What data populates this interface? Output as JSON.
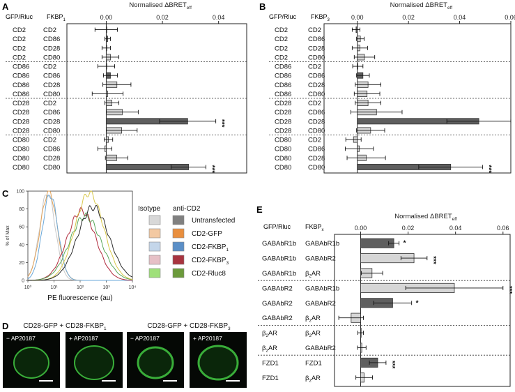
{
  "panels": {
    "A": {
      "letter": "A",
      "header_left": "GFP/Rluc",
      "header_right": "FKBP",
      "header_sub": "1"
    },
    "B": {
      "letter": "B",
      "header_left": "GFP/Rluc",
      "header_right": "FKBP",
      "header_sub": "3"
    },
    "C": {
      "letter": "C"
    },
    "D": {
      "letter": "D"
    },
    "E": {
      "letter": "E",
      "header_left": "GFP/Rluc",
      "header_right": "FKBP",
      "header_sub": "x"
    }
  },
  "colors": {
    "light_bar": "#d6d6d6",
    "dark_bar": "#5f5f5f",
    "gfp_green": "#3fbf3f",
    "flow": [
      "#c8c8c8",
      "#e3a35a",
      "#6aa7d8",
      "#b0283a",
      "#5aa75a",
      "#d9c84a",
      "#2a2a2a"
    ]
  },
  "chart_data": [
    {
      "id": "A",
      "type": "bar",
      "orientation": "horizontal",
      "xlabel": "Normalised ΔBRET",
      "xlabel_sub": "eff",
      "xticks": [
        "0.00",
        "0.02",
        "0.04"
      ],
      "xlim": [
        -0.014,
        0.05
      ],
      "categories": [
        {
          "gfp": "CD2",
          "fkbp": "CD2"
        },
        {
          "gfp": "CD2",
          "fkbp": "CD86"
        },
        {
          "gfp": "CD2",
          "fkbp": "CD28"
        },
        {
          "gfp": "CD2",
          "fkbp": "CD80"
        },
        {
          "gfp": "CD86",
          "fkbp": "CD2"
        },
        {
          "gfp": "CD86",
          "fkbp": "CD86"
        },
        {
          "gfp": "CD86",
          "fkbp": "CD28"
        },
        {
          "gfp": "CD86",
          "fkbp": "CD80"
        },
        {
          "gfp": "CD28",
          "fkbp": "CD2"
        },
        {
          "gfp": "CD28",
          "fkbp": "CD86"
        },
        {
          "gfp": "CD28",
          "fkbp": "CD28"
        },
        {
          "gfp": "CD28",
          "fkbp": "CD80"
        },
        {
          "gfp": "CD80",
          "fkbp": "CD2"
        },
        {
          "gfp": "CD80",
          "fkbp": "CD86"
        },
        {
          "gfp": "CD80",
          "fkbp": "CD28"
        },
        {
          "gfp": "CD80",
          "fkbp": "CD80"
        }
      ],
      "values": [
        0.0,
        0.0005,
        0.0,
        0.0015,
        0.0,
        0.0015,
        0.0038,
        0.0005,
        0.002,
        0.0057,
        0.029,
        0.0055,
        0.0008,
        -0.0005,
        0.0037,
        0.0293
      ],
      "errors": [
        0.004,
        0.001,
        0.0015,
        0.003,
        0.003,
        0.0025,
        0.005,
        0.0055,
        0.0025,
        0.0057,
        0.01,
        0.0055,
        0.0015,
        0.0025,
        0.004,
        0.0062
      ],
      "dark": [
        false,
        true,
        false,
        false,
        false,
        true,
        false,
        false,
        false,
        false,
        true,
        false,
        false,
        false,
        false,
        true
      ],
      "significance": [
        "",
        "",
        "",
        "",
        "",
        "",
        "",
        "",
        "",
        "",
        "***",
        "",
        "",
        "",
        "",
        "***"
      ],
      "group_breaks": [
        4,
        8,
        12
      ]
    },
    {
      "id": "B",
      "type": "bar",
      "orientation": "horizontal",
      "xlabel": "Normalised ΔBRET",
      "xlabel_sub": "eff",
      "xticks": [
        "0.00",
        "0.02",
        "0.04",
        "0.06"
      ],
      "xlim": [
        -0.013,
        0.06
      ],
      "categories": [
        {
          "gfp": "CD2",
          "fkbp": "CD2"
        },
        {
          "gfp": "CD2",
          "fkbp": "CD86"
        },
        {
          "gfp": "CD2",
          "fkbp": "CD28"
        },
        {
          "gfp": "CD2",
          "fkbp": "CD80"
        },
        {
          "gfp": "CD86",
          "fkbp": "CD2"
        },
        {
          "gfp": "CD86",
          "fkbp": "CD86"
        },
        {
          "gfp": "CD86",
          "fkbp": "CD28"
        },
        {
          "gfp": "CD86",
          "fkbp": "CD80"
        },
        {
          "gfp": "CD28",
          "fkbp": "CD2"
        },
        {
          "gfp": "CD28",
          "fkbp": "CD86"
        },
        {
          "gfp": "CD28",
          "fkbp": "CD28"
        },
        {
          "gfp": "CD28",
          "fkbp": "CD80"
        },
        {
          "gfp": "CD80",
          "fkbp": "CD2"
        },
        {
          "gfp": "CD80",
          "fkbp": "CD86"
        },
        {
          "gfp": "CD80",
          "fkbp": "CD28"
        },
        {
          "gfp": "CD80",
          "fkbp": "CD80"
        }
      ],
      "values": [
        -0.0005,
        0.0012,
        0.001,
        0.0028,
        0.0002,
        0.0022,
        0.0042,
        0.0038,
        0.0042,
        0.0075,
        0.0475,
        0.0052,
        -0.0015,
        0.0008,
        0.0035,
        0.0365
      ],
      "errors": [
        0.0015,
        0.0015,
        0.003,
        0.004,
        0.002,
        0.0025,
        0.005,
        0.005,
        0.005,
        0.01,
        0.0125,
        0.0055,
        0.003,
        0.0055,
        0.0075,
        0.0125
      ],
      "dark": [
        true,
        false,
        false,
        false,
        false,
        true,
        false,
        false,
        false,
        false,
        true,
        false,
        false,
        false,
        false,
        true
      ],
      "significance": [
        "",
        "",
        "",
        "",
        "",
        "",
        "",
        "",
        "",
        "",
        "***",
        "",
        "",
        "",
        "",
        "***"
      ],
      "group_breaks": [
        4,
        8,
        12
      ]
    },
    {
      "id": "C",
      "type": "line",
      "ylabel": "% of Max",
      "xlabel": "PE fluorescence (au)",
      "yticks": [
        "0",
        "20",
        "40",
        "60",
        "80",
        "100"
      ],
      "ylim": [
        0,
        100
      ],
      "xscale": "log",
      "xticks": [
        "10⁰",
        "10¹",
        "10²",
        "10³",
        "10⁴"
      ],
      "xlim": [
        1,
        10000
      ],
      "series": [
        {
          "key": "c1",
          "peak_log": 0.75,
          "width": 0.3,
          "height": 98
        },
        {
          "key": "c2",
          "peak_log": 0.8,
          "width": 0.32,
          "height": 100
        },
        {
          "key": "c3",
          "peak_log": 0.85,
          "width": 0.3,
          "height": 96
        },
        {
          "key": "c4",
          "peak_log": 2.05,
          "width": 0.55,
          "height": 78
        },
        {
          "key": "c5",
          "peak_log": 2.2,
          "width": 0.6,
          "height": 72
        },
        {
          "key": "c6",
          "peak_log": 2.35,
          "width": 0.55,
          "height": 98
        },
        {
          "key": "c7",
          "peak_log": 2.5,
          "width": 0.6,
          "height": 82
        }
      ],
      "legend_headers": {
        "isotype": "Isotype",
        "anti": "anti-CD2"
      },
      "legend": [
        {
          "label": "Untransfected",
          "left": "#d8d8d8",
          "right": "#808080"
        },
        {
          "label": "CD2-GFP",
          "left": "#f3c9a2",
          "right": "#e98f3e"
        },
        {
          "label": "CD2-FKBP",
          "sub": "1",
          "left": "#c4d6ea",
          "right": "#5b8fc7"
        },
        {
          "label": "CD2-FKBP",
          "sub": "3",
          "left": "#e6c0c6",
          "right": "#a8343f"
        },
        {
          "label": "CD2-Rluc8",
          "left": "#9fe07a",
          "right": "#6b9a3b"
        }
      ]
    },
    {
      "id": "E",
      "type": "bar",
      "orientation": "horizontal",
      "xlabel": "Normalised ΔBRET",
      "xlabel_sub": "eff",
      "xticks": [
        "0.00",
        "0.02",
        "0.04",
        "0.06"
      ],
      "xlim": [
        -0.011,
        0.063
      ],
      "categories": [
        {
          "gfp": "GABAbR1b",
          "fkbp": "GABAbR1b"
        },
        {
          "gfp": "GABAbR1b",
          "fkbp": "GABAbR2"
        },
        {
          "gfp": "GABAbR1b",
          "fkbp": "β2AR"
        },
        {
          "gfp": "GABAbR2",
          "fkbp": "GABAbR1b"
        },
        {
          "gfp": "GABAbR2",
          "fkbp": "GABAbR2"
        },
        {
          "gfp": "GABAbR2",
          "fkbp": "β2AR"
        },
        {
          "gfp": "β2AR",
          "fkbp": "β2AR"
        },
        {
          "gfp": "β2AR",
          "fkbp": "GABAbR2"
        },
        {
          "gfp": "FZD1",
          "fkbp": "FZD1"
        },
        {
          "gfp": "FZD1",
          "fkbp": "β2AR"
        }
      ],
      "values": [
        0.014,
        0.0225,
        0.0048,
        0.0395,
        0.0135,
        -0.004,
        0.0,
        0.0005,
        0.0072,
        0.0015
      ],
      "errors": [
        0.0022,
        0.0055,
        0.0045,
        0.0205,
        0.008,
        0.0052,
        0.0012,
        0.0018,
        0.0035,
        0.0035
      ],
      "dark": [
        true,
        false,
        false,
        false,
        true,
        false,
        true,
        false,
        true,
        false
      ],
      "significance": [
        "*",
        "***",
        "",
        "***",
        "*",
        "",
        "",
        "",
        "***",
        ""
      ],
      "group_breaks": [
        3,
        6,
        8
      ]
    }
  ],
  "microscopy": {
    "titles": [
      {
        "text": "CD28-GFP + CD28-FKBP",
        "sub": "1"
      },
      {
        "text": "CD28-GFP + CD28-FKBP",
        "sub": "3"
      }
    ],
    "cells": [
      "− AP20187",
      "+ AP20187",
      "− AP20187",
      "+ AP20187"
    ]
  }
}
